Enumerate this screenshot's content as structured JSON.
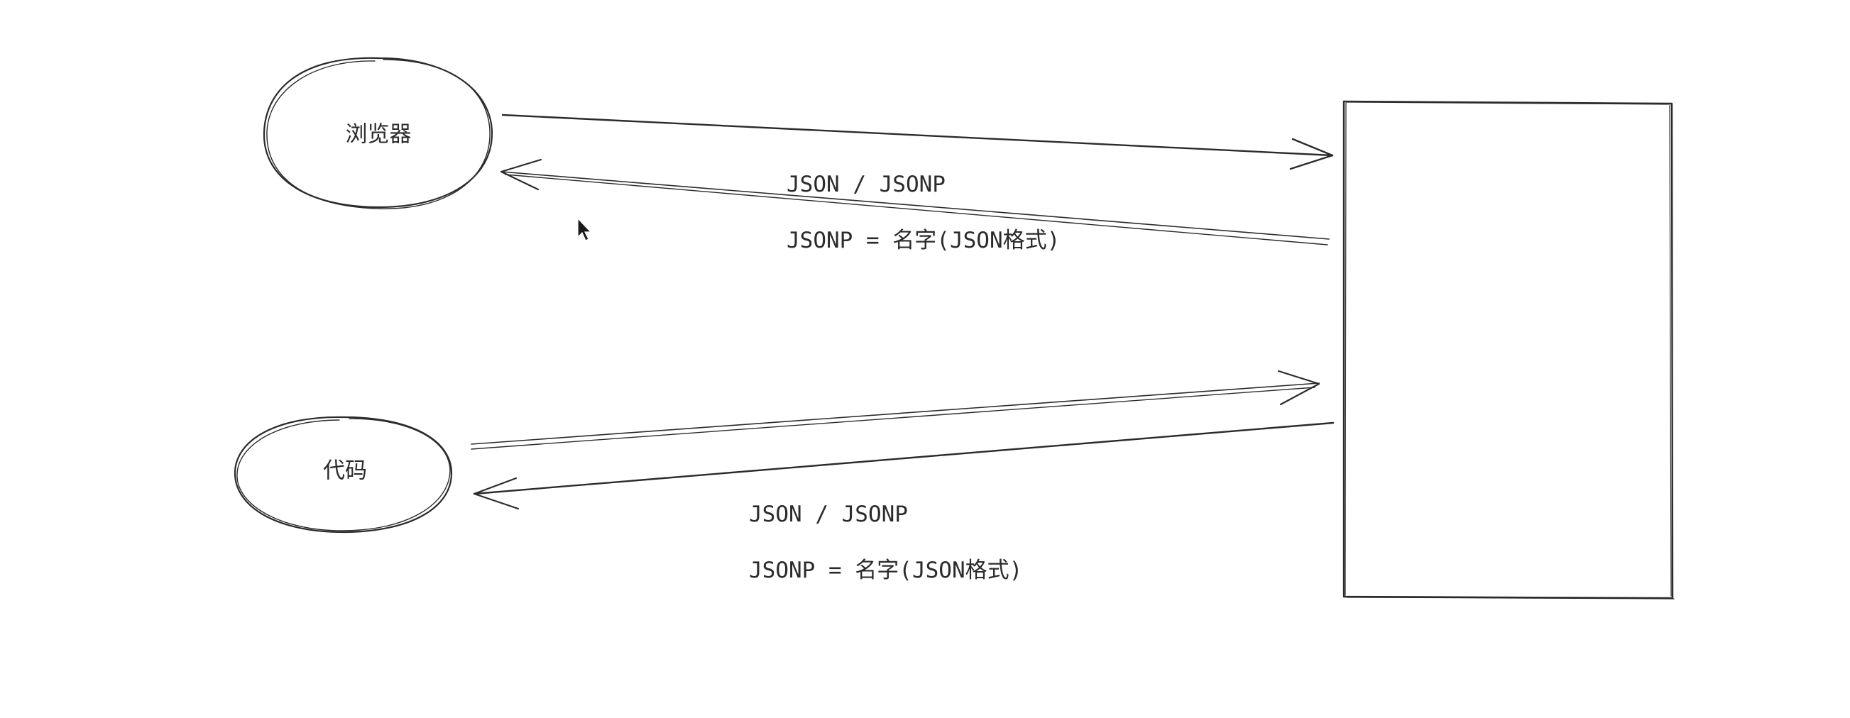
{
  "nodes": {
    "browser": {
      "label": "浏览器"
    },
    "code": {
      "label": "代码"
    }
  },
  "edges": {
    "upper": {
      "format_note": "JSON / JSONP",
      "jsonp_note": "JSONP = 名字(JSON格式)"
    },
    "lower": {
      "format_note": "JSON / JSONP",
      "jsonp_note": "JSONP = 名字(JSON格式)"
    }
  },
  "colors": {
    "stroke": "#2b2b2b",
    "background": "#ffffff"
  }
}
